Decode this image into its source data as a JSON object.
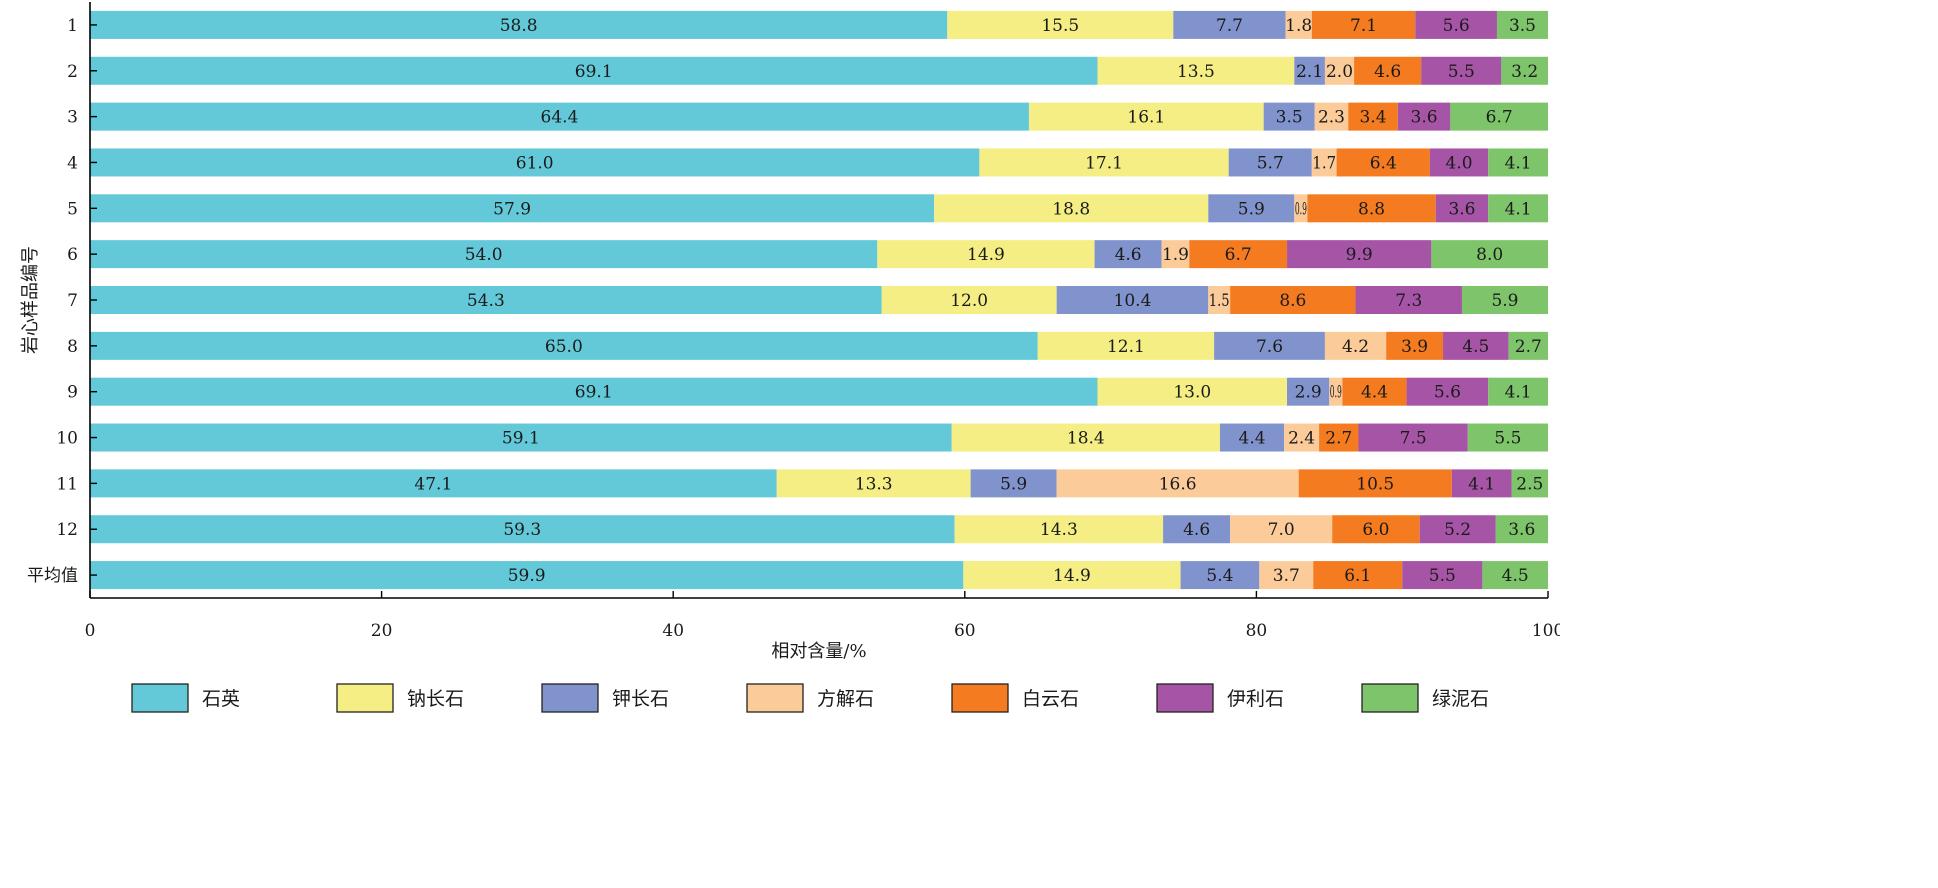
{
  "chart_data": {
    "type": "bar",
    "orientation": "horizontal",
    "stacked": true,
    "title": "",
    "xlabel": "相对含量/%",
    "ylabel": "岩心样品编号",
    "xlim": [
      0,
      100
    ],
    "xticks": [
      "0",
      "20",
      "40",
      "60",
      "80",
      "100"
    ],
    "grid": false,
    "legend_position": "bottom",
    "categories": [
      "1",
      "2",
      "3",
      "4",
      "5",
      "6",
      "7",
      "8",
      "9",
      "10",
      "11",
      "12",
      "平均值"
    ],
    "series": [
      {
        "name": "石英",
        "color": "#63c8d8",
        "values": [
          58.8,
          69.1,
          64.4,
          61.0,
          57.9,
          54.0,
          54.3,
          65.0,
          69.1,
          59.1,
          47.1,
          59.3,
          59.9
        ]
      },
      {
        "name": "钠长石",
        "color": "#f4ee85",
        "values": [
          15.5,
          13.5,
          16.1,
          17.1,
          18.8,
          14.9,
          12.0,
          12.1,
          13.0,
          18.4,
          13.3,
          14.3,
          14.9
        ]
      },
      {
        "name": "钾长石",
        "color": "#8193cc",
        "values": [
          7.7,
          2.1,
          3.5,
          5.7,
          5.9,
          4.6,
          10.4,
          7.6,
          2.9,
          4.4,
          5.9,
          4.6,
          5.4
        ]
      },
      {
        "name": "方解石",
        "color": "#fbcc99",
        "values": [
          1.8,
          2.0,
          2.3,
          1.7,
          0.9,
          1.9,
          1.5,
          4.2,
          0.9,
          2.4,
          16.6,
          7.0,
          3.7
        ]
      },
      {
        "name": "白云石",
        "color": "#f47b20",
        "values": [
          7.1,
          4.6,
          3.4,
          6.4,
          8.8,
          6.7,
          8.6,
          3.9,
          4.4,
          2.7,
          10.5,
          6.0,
          6.1
        ]
      },
      {
        "name": "伊利石",
        "color": "#a655a6",
        "values": [
          5.6,
          5.5,
          3.6,
          4.0,
          3.6,
          9.9,
          7.3,
          4.5,
          5.6,
          7.5,
          4.1,
          5.2,
          5.5
        ]
      },
      {
        "name": "绿泥石",
        "color": "#7ec46b",
        "values": [
          3.5,
          3.2,
          6.7,
          4.1,
          4.1,
          8.0,
          5.9,
          2.7,
          4.1,
          5.5,
          2.5,
          3.6,
          4.5
        ]
      }
    ]
  }
}
